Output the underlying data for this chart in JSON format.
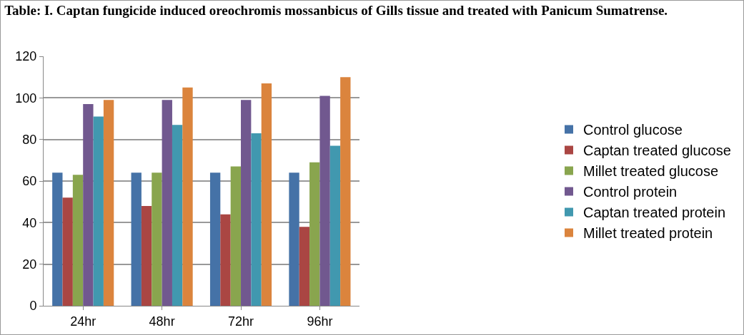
{
  "chart_data": {
    "type": "bar",
    "title": "Table: I. Captan fungicide induced oreochromis mossanbicus of Gills tissue and treated with Panicum Sumatrense.",
    "categories": [
      "24hr",
      "48hr",
      "72hr",
      "96hr"
    ],
    "series": [
      {
        "name": "Control glucose",
        "color": "#4572a7",
        "values": [
          64,
          64,
          64,
          64
        ]
      },
      {
        "name": "Captan treated glucose",
        "color": "#aa4643",
        "values": [
          52,
          48,
          44,
          38
        ]
      },
      {
        "name": "Millet treated glucose",
        "color": "#89a54e",
        "values": [
          63,
          64,
          67,
          69
        ]
      },
      {
        "name": "Control protein",
        "color": "#71588f",
        "values": [
          97,
          99,
          99,
          101
        ]
      },
      {
        "name": "Captan treated protein",
        "color": "#4198af",
        "values": [
          91,
          87,
          83,
          77
        ]
      },
      {
        "name": "Millet treated protein",
        "color": "#db843d",
        "values": [
          99,
          105,
          107,
          110
        ]
      }
    ],
    "ylim": [
      0,
      120
    ],
    "yticks": [
      0,
      20,
      40,
      60,
      80,
      100,
      120
    ],
    "grid": "y",
    "legend": "right"
  }
}
